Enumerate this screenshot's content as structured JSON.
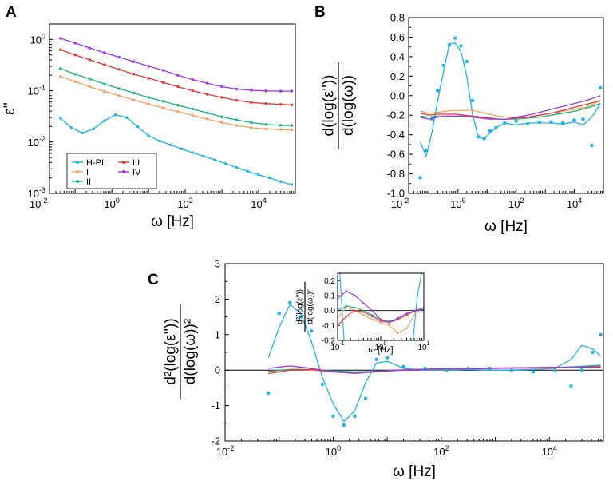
{
  "colors": {
    "H-PI": "#1cb4e8",
    "I": "#f6a15f",
    "II": "#16b483",
    "III": "#e8383a",
    "IV": "#9b36e6"
  },
  "chart_data": [
    {
      "panel": "A",
      "type": "line",
      "xscale": "log",
      "yscale": "log",
      "xlim": [
        0.02,
        100000
      ],
      "ylim": [
        0.001,
        2
      ],
      "ylabel": "ε''",
      "xlabel": "ω [Hz]",
      "xticks": [
        "10^-2",
        "10^0",
        "10^2",
        "10^4"
      ],
      "yticks": [
        "10^-3",
        "10^-2",
        "10^-1",
        "10^0"
      ],
      "legend": {
        "location": "lower-left",
        "columns": 2,
        "entries": [
          "H-PI",
          "I",
          "II",
          "III",
          "IV"
        ]
      },
      "series": [
        {
          "name": "H-PI",
          "x_log": [
            -1.4,
            -1.1,
            -0.8,
            -0.5,
            -0.2,
            0.1,
            0.4,
            0.7,
            1.0,
            1.3,
            1.6,
            1.9,
            2.2,
            2.5,
            2.8,
            3.1,
            3.4,
            3.7,
            4.0,
            4.3,
            4.6,
            4.9
          ],
          "y": [
            0.029,
            0.019,
            0.015,
            0.018,
            0.026,
            0.034,
            0.03,
            0.02,
            0.0133,
            0.0105,
            0.0088,
            0.0074,
            0.0062,
            0.0053,
            0.0045,
            0.0038,
            0.0032,
            0.0027,
            0.0023,
            0.002,
            0.0017,
            0.00148
          ]
        },
        {
          "name": "I",
          "x_log": [
            -1.4,
            -1.0,
            -0.6,
            -0.2,
            0.2,
            0.6,
            1.0,
            1.4,
            1.8,
            2.2,
            2.6,
            3.0,
            3.4,
            3.8,
            4.2,
            4.6,
            4.9
          ],
          "y": [
            0.19,
            0.15,
            0.12,
            0.097,
            0.08,
            0.066,
            0.055,
            0.046,
            0.039,
            0.033,
            0.028,
            0.024,
            0.021,
            0.019,
            0.018,
            0.0175,
            0.0172
          ]
        },
        {
          "name": "II",
          "x_log": [
            -1.4,
            -1.0,
            -0.6,
            -0.2,
            0.2,
            0.6,
            1.0,
            1.4,
            1.8,
            2.2,
            2.6,
            3.0,
            3.4,
            3.8,
            4.2,
            4.6,
            4.9
          ],
          "y": [
            0.27,
            0.21,
            0.17,
            0.135,
            0.11,
            0.09,
            0.074,
            0.062,
            0.052,
            0.044,
            0.037,
            0.031,
            0.027,
            0.024,
            0.022,
            0.0212,
            0.021
          ]
        },
        {
          "name": "III",
          "x_log": [
            -1.4,
            -1.0,
            -0.6,
            -0.2,
            0.2,
            0.6,
            1.0,
            1.4,
            1.8,
            2.2,
            2.6,
            3.0,
            3.4,
            3.8,
            4.2,
            4.6,
            4.9
          ],
          "y": [
            0.63,
            0.5,
            0.4,
            0.32,
            0.26,
            0.21,
            0.175,
            0.145,
            0.12,
            0.1,
            0.085,
            0.074,
            0.065,
            0.059,
            0.056,
            0.054,
            0.053
          ]
        },
        {
          "name": "IV",
          "x_log": [
            -1.4,
            -1.0,
            -0.6,
            -0.2,
            0.2,
            0.6,
            1.0,
            1.4,
            1.8,
            2.2,
            2.6,
            3.0,
            3.4,
            3.8,
            4.2,
            4.6,
            4.9
          ],
          "y": [
            1.05,
            0.85,
            0.68,
            0.55,
            0.45,
            0.37,
            0.3,
            0.25,
            0.2,
            0.165,
            0.14,
            0.12,
            0.108,
            0.102,
            0.099,
            0.098,
            0.098
          ]
        }
      ]
    },
    {
      "panel": "B",
      "type": "line",
      "xscale": "log",
      "xlim": [
        0.02,
        100000
      ],
      "ylim": [
        -1.0,
        0.8
      ],
      "ylabel_num": "d(log(ε''))",
      "ylabel_den": "d(log(ω))",
      "xlabel": "ω [Hz]",
      "xticks": [
        "10^-2",
        "10^0",
        "10^2",
        "10^4"
      ],
      "yticks": [
        "-1.0",
        "-0.8",
        "-0.6",
        "-0.4",
        "-0.2",
        "0.0",
        "0.2",
        "0.4",
        "0.6",
        "0.8"
      ],
      "series": [
        {
          "name": "H-PI",
          "x_log": [
            -1.3,
            -1.1,
            -0.9,
            -0.7,
            -0.5,
            -0.3,
            -0.1,
            0.1,
            0.3,
            0.5,
            0.7,
            0.9,
            1.1,
            1.3,
            1.6,
            2.0,
            2.4,
            2.8,
            3.2,
            3.6,
            4.0,
            4.3,
            4.6,
            4.9
          ],
          "y": [
            -0.47,
            -0.62,
            -0.38,
            -0.05,
            0.25,
            0.53,
            0.54,
            0.45,
            0.2,
            -0.2,
            -0.43,
            -0.44,
            -0.38,
            -0.33,
            -0.28,
            -0.3,
            -0.28,
            -0.28,
            -0.28,
            -0.29,
            -0.27,
            -0.3,
            -0.22,
            -0.08
          ],
          "scatter_x_log": [
            -1.3,
            -1.1,
            -0.9,
            -0.7,
            -0.5,
            -0.3,
            -0.1,
            0.1,
            0.3,
            0.5,
            0.7,
            0.9,
            1.1,
            1.3,
            1.6,
            2.0,
            2.4,
            2.8,
            3.2,
            3.6,
            4.0,
            4.3,
            4.6,
            4.9
          ],
          "scatter_y": [
            -0.84,
            -0.56,
            -0.24,
            0.05,
            0.31,
            0.52,
            0.59,
            0.51,
            0.35,
            -0.05,
            -0.42,
            -0.44,
            -0.36,
            -0.33,
            -0.28,
            -0.26,
            -0.29,
            -0.27,
            -0.27,
            -0.28,
            -0.25,
            -0.24,
            -0.51,
            0.08
          ]
        },
        {
          "name": "I",
          "x_log": [
            -1.3,
            -1.0,
            -0.7,
            -0.4,
            -0.1,
            0.2,
            0.5,
            0.8,
            1.1,
            1.4,
            1.7,
            2.0,
            2.4,
            2.8,
            3.2,
            3.6,
            4.0,
            4.4,
            4.9
          ],
          "y": [
            -0.16,
            -0.18,
            -0.17,
            -0.16,
            -0.15,
            -0.15,
            -0.15,
            -0.17,
            -0.19,
            -0.21,
            -0.22,
            -0.22,
            -0.22,
            -0.2,
            -0.18,
            -0.16,
            -0.14,
            -0.12,
            -0.05
          ]
        },
        {
          "name": "II",
          "x_log": [
            -1.3,
            -1.0,
            -0.7,
            -0.4,
            -0.1,
            0.2,
            0.5,
            0.8,
            1.1,
            1.4,
            1.7,
            2.0,
            2.4,
            2.8,
            3.2,
            3.6,
            4.0,
            4.4,
            4.9
          ],
          "y": [
            -0.21,
            -0.22,
            -0.21,
            -0.21,
            -0.21,
            -0.21,
            -0.21,
            -0.22,
            -0.23,
            -0.24,
            -0.24,
            -0.24,
            -0.23,
            -0.22,
            -0.2,
            -0.18,
            -0.16,
            -0.13,
            -0.08
          ]
        },
        {
          "name": "III",
          "x_log": [
            -1.3,
            -1.0,
            -0.7,
            -0.4,
            -0.1,
            0.2,
            0.5,
            0.8,
            1.1,
            1.4,
            1.7,
            2.0,
            2.4,
            2.8,
            3.2,
            3.6,
            4.0,
            4.4,
            4.9
          ],
          "y": [
            -0.18,
            -0.2,
            -0.19,
            -0.19,
            -0.19,
            -0.2,
            -0.21,
            -0.22,
            -0.23,
            -0.24,
            -0.24,
            -0.23,
            -0.22,
            -0.2,
            -0.18,
            -0.15,
            -0.12,
            -0.09,
            -0.05
          ]
        },
        {
          "name": "IV",
          "x_log": [
            -1.3,
            -1.0,
            -0.7,
            -0.4,
            -0.1,
            0.2,
            0.5,
            0.8,
            1.1,
            1.4,
            1.7,
            2.0,
            2.4,
            2.8,
            3.2,
            3.6,
            4.0,
            4.4,
            4.9
          ],
          "y": [
            -0.22,
            -0.24,
            -0.22,
            -0.21,
            -0.21,
            -0.21,
            -0.22,
            -0.23,
            -0.24,
            -0.24,
            -0.24,
            -0.22,
            -0.2,
            -0.17,
            -0.14,
            -0.11,
            -0.08,
            -0.05,
            0.0
          ]
        }
      ]
    },
    {
      "panel": "C",
      "type": "line",
      "xscale": "log",
      "xlim": [
        0.01,
        100000
      ],
      "ylim": [
        -2,
        3
      ],
      "ylabel_num": "d²(log(ε''))",
      "ylabel_den": "d(log(ω))²",
      "xlabel": "ω [Hz]",
      "xticks": [
        "10^-2",
        "10^0",
        "10^2",
        "10^4"
      ],
      "yticks": [
        "-2",
        "-1",
        "0",
        "1",
        "2",
        "3"
      ],
      "series": [
        {
          "name": "H-PI",
          "x_log": [
            -1.2,
            -1.0,
            -0.8,
            -0.6,
            -0.4,
            -0.2,
            0.0,
            0.2,
            0.4,
            0.6,
            0.8,
            1.0,
            1.3,
            1.7,
            2.1,
            2.5,
            2.9,
            3.3,
            3.7,
            4.1,
            4.4,
            4.6,
            4.8,
            4.95
          ],
          "y": [
            0.35,
            1.2,
            1.85,
            1.6,
            0.8,
            -0.2,
            -0.95,
            -1.45,
            -1.15,
            -0.35,
            0.2,
            0.25,
            0.05,
            0.0,
            0.0,
            0.02,
            0.0,
            0.0,
            0.02,
            0.05,
            0.3,
            0.7,
            0.6,
            0.4
          ],
          "scatter_x_log": [
            -1.2,
            -1.0,
            -0.8,
            -0.6,
            -0.4,
            -0.2,
            0.0,
            0.2,
            0.4,
            0.6,
            0.8,
            1.0,
            1.3,
            1.7,
            2.1,
            2.5,
            2.9,
            3.3,
            3.7,
            4.1,
            4.4,
            4.6,
            4.8,
            4.95
          ],
          "scatter_y": [
            -0.65,
            1.6,
            1.9,
            1.5,
            1.1,
            -0.4,
            -1.3,
            -1.55,
            -1.3,
            -0.8,
            0.3,
            0.35,
            0.1,
            0.05,
            0.0,
            0.05,
            0.05,
            0.0,
            -0.05,
            0.0,
            -0.45,
            0.0,
            0.5,
            1.0
          ]
        },
        {
          "name": "I",
          "x_log": [
            -1.2,
            -0.8,
            -0.4,
            0.0,
            0.4,
            0.8,
            1.2,
            1.6,
            2.0,
            2.5,
            3.0,
            3.5,
            4.0,
            4.5,
            4.95
          ],
          "y": [
            -0.05,
            0.02,
            0.0,
            -0.05,
            -0.1,
            -0.05,
            0.0,
            0.02,
            0.03,
            0.04,
            0.05,
            0.05,
            0.06,
            0.08,
            0.12
          ]
        },
        {
          "name": "II",
          "x_log": [
            -1.2,
            -0.8,
            -0.4,
            0.0,
            0.4,
            0.8,
            1.2,
            1.6,
            2.0,
            2.5,
            3.0,
            3.5,
            4.0,
            4.5,
            4.95
          ],
          "y": [
            -0.03,
            0.02,
            0.02,
            -0.02,
            -0.05,
            -0.03,
            0.0,
            0.02,
            0.03,
            0.04,
            0.05,
            0.06,
            0.07,
            0.1,
            0.14
          ]
        },
        {
          "name": "III",
          "x_log": [
            -1.2,
            -0.8,
            -0.4,
            0.0,
            0.4,
            0.8,
            1.2,
            1.6,
            2.0,
            2.5,
            3.0,
            3.5,
            4.0,
            4.5,
            4.95
          ],
          "y": [
            -0.1,
            0.0,
            0.02,
            -0.05,
            -0.08,
            -0.05,
            -0.01,
            0.02,
            0.03,
            0.04,
            0.05,
            0.06,
            0.07,
            0.08,
            0.1
          ]
        },
        {
          "name": "IV",
          "x_log": [
            -1.2,
            -0.8,
            -0.4,
            0.0,
            0.4,
            0.8,
            1.2,
            1.6,
            2.0,
            2.5,
            3.0,
            3.5,
            4.0,
            4.5,
            4.95
          ],
          "y": [
            0.05,
            0.12,
            0.05,
            -0.05,
            -0.08,
            -0.04,
            0.0,
            0.02,
            0.04,
            0.05,
            0.06,
            0.07,
            0.08,
            0.08,
            0.08
          ]
        }
      ],
      "inset": {
        "xscale": "log",
        "xlim": [
          0.1,
          10
        ],
        "ylim": [
          -0.2,
          0.25
        ],
        "xticks": [
          "10^-1",
          "10^0",
          "10^1"
        ],
        "yticks": [
          "-0.2",
          "-0.1",
          "0.0",
          "0.1",
          "0.2"
        ],
        "xlabel": "ω [Hz]",
        "ylabel_num": "d²(log(ε''))",
        "ylabel_den": "d(log(ω))²",
        "series": [
          {
            "name": "H-PI",
            "x_log": [
              -0.95,
              -0.85,
              0.75,
              0.85,
              0.95
            ],
            "y": [
              0.25,
              -0.2,
              -0.2,
              0.1,
              0.25
            ]
          },
          {
            "name": "I",
            "x_log": [
              -1.0,
              -0.8,
              -0.6,
              -0.4,
              -0.2,
              0.0,
              0.2,
              0.4,
              0.6,
              0.8,
              1.0
            ],
            "y": [
              -0.05,
              0.02,
              0.0,
              -0.03,
              -0.06,
              -0.08,
              -0.1,
              -0.15,
              -0.12,
              -0.02,
              0.02
            ]
          },
          {
            "name": "II",
            "x_log": [
              -1.0,
              -0.8,
              -0.6,
              -0.4,
              -0.2,
              0.0,
              0.2,
              0.4,
              0.6,
              0.8,
              1.0
            ],
            "y": [
              0.0,
              0.03,
              0.02,
              0.0,
              -0.03,
              -0.06,
              -0.07,
              -0.06,
              -0.03,
              0.0,
              0.02
            ]
          },
          {
            "name": "III",
            "x_log": [
              -1.0,
              -0.8,
              -0.6,
              -0.4,
              -0.2,
              0.0,
              0.2,
              0.4,
              0.6,
              0.8,
              1.0
            ],
            "y": [
              -0.1,
              -0.04,
              0.0,
              -0.01,
              -0.04,
              -0.07,
              -0.08,
              -0.06,
              -0.03,
              0.0,
              0.01
            ]
          },
          {
            "name": "IV",
            "x_log": [
              -1.0,
              -0.8,
              -0.6,
              -0.4,
              -0.2,
              0.0,
              0.2,
              0.4,
              0.6,
              0.8,
              1.0
            ],
            "y": [
              0.08,
              0.13,
              0.1,
              0.05,
              0.0,
              -0.06,
              -0.08,
              -0.05,
              -0.02,
              0.0,
              0.01
            ]
          }
        ]
      }
    }
  ]
}
